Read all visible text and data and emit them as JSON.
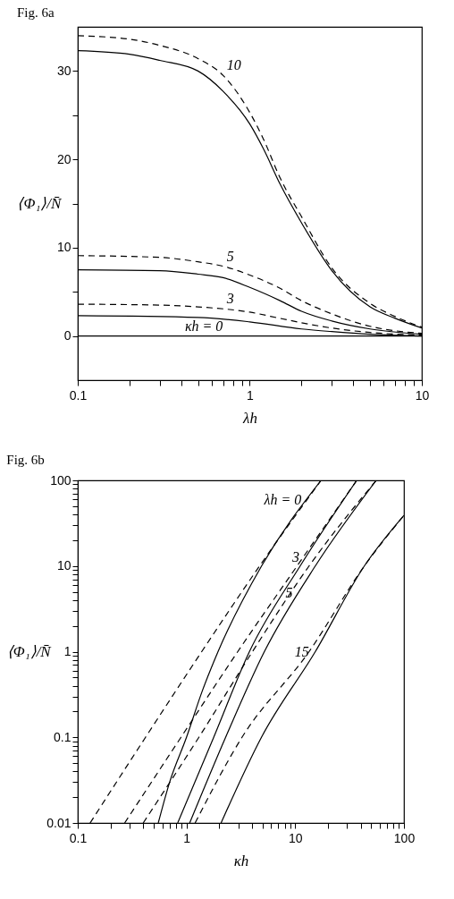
{
  "chart_data": [
    {
      "type": "line",
      "title": "Fig. 6a",
      "xlabel": "λh",
      "ylabel": "⟨Φ₁⟩/N̄",
      "log": "x",
      "grid": false,
      "xlim": [
        0.1,
        10
      ],
      "ylim": [
        -5,
        35
      ],
      "xticks": [
        0.1,
        {
          "value": 0.2,
          "label": null
        },
        {
          "value": 0.3,
          "label": null
        },
        {
          "value": 0.4,
          "label": null
        },
        {
          "value": 0.5,
          "label": null
        },
        {
          "value": 0.6,
          "label": null
        },
        {
          "value": 0.7,
          "label": null
        },
        {
          "value": 0.8,
          "label": null
        },
        {
          "value": 0.9,
          "label": null
        },
        1,
        {
          "value": 2,
          "label": null
        },
        {
          "value": 3,
          "label": null
        },
        {
          "value": 4,
          "label": null
        },
        {
          "value": 5,
          "label": null
        },
        {
          "value": 6,
          "label": null
        },
        {
          "value": 7,
          "label": null
        },
        {
          "value": 8,
          "label": null
        },
        {
          "value": 9,
          "label": null
        },
        10
      ],
      "yticks": [
        0,
        {
          "value": 5,
          "label": null
        },
        10,
        {
          "value": 15,
          "label": null
        },
        20,
        {
          "value": 25,
          "label": null
        },
        30
      ],
      "series": [
        {
          "color": "#000000",
          "line_style": "solid",
          "x": [
            0.1,
            0.2,
            0.3,
            0.5,
            0.7,
            1,
            1.2,
            1.5,
            2,
            3,
            5,
            7,
            10
          ],
          "values": [
            32.3,
            31.9,
            31.2,
            30.0,
            27.7,
            24.0,
            21.2,
            17.2,
            12.8,
            7.4,
            3.3,
            2.0,
            0.9
          ]
        },
        {
          "color": "#000000",
          "line_style": "dashed",
          "x": [
            0.1,
            0.2,
            0.3,
            0.5,
            0.7,
            1,
            1.2,
            1.5,
            2,
            3,
            5,
            7,
            10
          ],
          "values": [
            34.0,
            33.6,
            32.9,
            31.4,
            29.5,
            25.3,
            22.3,
            17.9,
            13.5,
            7.7,
            3.7,
            2.2,
            1.0
          ]
        },
        {
          "color": "#000000",
          "line_style": "solid",
          "x": [
            0.1,
            0.3,
            0.5,
            0.7,
            1,
            1.5,
            2,
            3,
            5,
            10
          ],
          "values": [
            7.5,
            7.4,
            7.0,
            6.6,
            5.5,
            4.0,
            2.8,
            1.7,
            0.8,
            0.2
          ]
        },
        {
          "color": "#000000",
          "line_style": "dashed",
          "x": [
            0.1,
            0.3,
            0.5,
            0.7,
            1,
            1.5,
            2,
            3,
            5,
            10
          ],
          "values": [
            9.1,
            8.9,
            8.4,
            7.9,
            6.9,
            5.4,
            4.0,
            2.5,
            1.1,
            0.3
          ]
        },
        {
          "color": "#000000",
          "line_style": "solid",
          "x": [
            0.1,
            0.5,
            1,
            2,
            3,
            5,
            10
          ],
          "values": [
            2.3,
            2.1,
            1.6,
            0.8,
            0.5,
            0.2,
            0.0
          ]
        },
        {
          "color": "#000000",
          "line_style": "dashed",
          "x": [
            0.1,
            0.3,
            0.5,
            1,
            1.5,
            2,
            3,
            5,
            10
          ],
          "values": [
            3.6,
            3.5,
            3.3,
            2.7,
            2.0,
            1.5,
            0.9,
            0.4,
            0.1
          ]
        },
        {
          "color": "#000000",
          "line_style": "solid",
          "x": [
            0.1,
            10
          ],
          "values": [
            0,
            0
          ]
        }
      ],
      "annotations": [
        {
          "text": "10",
          "x": 0.7,
          "y": 29.5
        },
        {
          "text": "5",
          "x": 0.7,
          "y": 7.9
        },
        {
          "text": "3",
          "x": 0.7,
          "y": 3.1
        },
        {
          "text": "κh = 0",
          "x": 0.4,
          "y": 0
        }
      ]
    },
    {
      "type": "line",
      "title": "Fig. 6b",
      "xlabel": "κh",
      "ylabel": "⟨Φ₁⟩/N̄",
      "log": "xy",
      "grid": false,
      "xlim": [
        0.1,
        100
      ],
      "ylim": [
        0.01,
        100
      ],
      "xticks": [
        0.1,
        {
          "value": 0.2,
          "label": null
        },
        {
          "value": 0.3,
          "label": null
        },
        {
          "value": 0.4,
          "label": null
        },
        {
          "value": 0.5,
          "label": null
        },
        {
          "value": 0.6,
          "label": null
        },
        {
          "value": 0.7,
          "label": null
        },
        {
          "value": 0.8,
          "label": null
        },
        {
          "value": 0.9,
          "label": null
        },
        1,
        {
          "value": 2,
          "label": null
        },
        {
          "value": 3,
          "label": null
        },
        {
          "value": 4,
          "label": null
        },
        {
          "value": 5,
          "label": null
        },
        {
          "value": 6,
          "label": null
        },
        {
          "value": 7,
          "label": null
        },
        {
          "value": 8,
          "label": null
        },
        {
          "value": 9,
          "label": null
        },
        10,
        {
          "value": 20,
          "label": null
        },
        {
          "value": 30,
          "label": null
        },
        {
          "value": 40,
          "label": null
        },
        {
          "value": 50,
          "label": null
        },
        {
          "value": 60,
          "label": null
        },
        {
          "value": 70,
          "label": null
        },
        {
          "value": 80,
          "label": null
        },
        {
          "value": 90,
          "label": null
        },
        100
      ],
      "yticks": [
        0.01,
        {
          "value": 0.02,
          "label": null
        },
        {
          "value": 0.03,
          "label": null
        },
        {
          "value": 0.04,
          "label": null
        },
        {
          "value": 0.05,
          "label": null
        },
        {
          "value": 0.06,
          "label": null
        },
        {
          "value": 0.07,
          "label": null
        },
        {
          "value": 0.08,
          "label": null
        },
        {
          "value": 0.09,
          "label": null
        },
        0.1,
        {
          "value": 0.2,
          "label": null
        },
        {
          "value": 0.3,
          "label": null
        },
        {
          "value": 0.4,
          "label": null
        },
        {
          "value": 0.5,
          "label": null
        },
        {
          "value": 0.6,
          "label": null
        },
        {
          "value": 0.7,
          "label": null
        },
        {
          "value": 0.8,
          "label": null
        },
        {
          "value": 0.9,
          "label": null
        },
        1,
        {
          "value": 2,
          "label": null
        },
        {
          "value": 3,
          "label": null
        },
        {
          "value": 4,
          "label": null
        },
        {
          "value": 5,
          "label": null
        },
        {
          "value": 6,
          "label": null
        },
        {
          "value": 7,
          "label": null
        },
        {
          "value": 8,
          "label": null
        },
        {
          "value": 9,
          "label": null
        },
        10,
        {
          "value": 20,
          "label": null
        },
        {
          "value": 30,
          "label": null
        },
        {
          "value": 40,
          "label": null
        },
        {
          "value": 50,
          "label": null
        },
        {
          "value": 60,
          "label": null
        },
        {
          "value": 70,
          "label": null
        },
        {
          "value": 80,
          "label": null
        },
        {
          "value": 90,
          "label": null
        },
        100
      ],
      "series": [
        {
          "color": "#000000",
          "line_style": "solid",
          "x": [
            0.55,
            0.7,
            1.0,
            1.4,
            1.95,
            4.9,
            17.3
          ],
          "values": [
            0.01,
            0.03,
            0.1,
            0.35,
            1,
            10,
            100
          ]
        },
        {
          "color": "#000000",
          "line_style": "dashed",
          "x": [
            0.13,
            0.42,
            1.38,
            4.7,
            17.3
          ],
          "values": [
            0.01,
            0.1,
            1,
            10,
            100
          ]
        },
        {
          "color": "#000000",
          "line_style": "solid",
          "x": [
            0.83,
            1.78,
            3.79,
            11.1,
            36.8
          ],
          "values": [
            0.01,
            0.1,
            1,
            10,
            100
          ]
        },
        {
          "color": "#000000",
          "line_style": "dashed",
          "x": [
            0.27,
            0.89,
            2.96,
            10.4,
            36.8
          ],
          "values": [
            0.01,
            0.1,
            1,
            10,
            100
          ]
        },
        {
          "color": "#000000",
          "line_style": "solid",
          "x": [
            1.07,
            2.29,
            5.2,
            15.3,
            55.6
          ],
          "values": [
            0.01,
            0.1,
            1,
            10,
            100
          ]
        },
        {
          "color": "#000000",
          "line_style": "dashed",
          "x": [
            0.4,
            1.3,
            4.04,
            13.4,
            55.6
          ],
          "values": [
            0.01,
            0.1,
            1,
            10,
            100
          ]
        },
        {
          "color": "#000000",
          "line_style": "solid",
          "x": [
            2.08,
            4.89,
            15.3,
            43.2,
            100
          ],
          "values": [
            0.01,
            0.1,
            1,
            10,
            39
          ]
        },
        {
          "color": "#000000",
          "line_style": "dashed",
          "x": [
            1.2,
            3.24,
            13.4,
            43.2,
            100
          ],
          "values": [
            0.01,
            0.1,
            1,
            10,
            39
          ]
        }
      ],
      "annotations": [
        {
          "text": "λh = 0",
          "x": 13.0,
          "y": 59
        },
        {
          "text": "3",
          "x": 12.5,
          "y": 12.5
        },
        {
          "text": "5",
          "x": 10.8,
          "y": 4.8
        },
        {
          "text": "15",
          "x": 15.3,
          "y": 1
        }
      ]
    }
  ]
}
